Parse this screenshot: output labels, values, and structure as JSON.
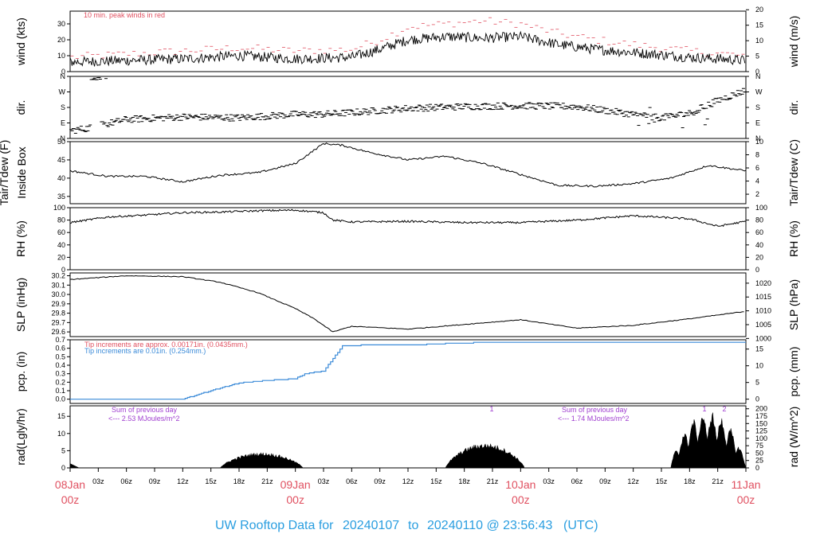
{
  "footer": {
    "prefix": "UW Rooftop Data for",
    "start": "20240107",
    "to": "to",
    "end": "20240110 @ 23:56:43",
    "tz": "(UTC)"
  },
  "x_axis": {
    "hour_ticks": [
      "03z",
      "06z",
      "09z",
      "12z",
      "15z",
      "18z",
      "21z",
      "03z",
      "06z",
      "09z",
      "12z",
      "15z",
      "18z",
      "21z",
      "03z",
      "06z",
      "09z",
      "12z",
      "15z",
      "18z",
      "21z"
    ],
    "day_ticks": [
      {
        "date": "08Jan",
        "hour": "00z"
      },
      {
        "date": "09Jan",
        "hour": "00z"
      },
      {
        "date": "10Jan",
        "hour": "00z"
      },
      {
        "date": "11Jan",
        "hour": "00z"
      }
    ],
    "range_hours": [
      0,
      72
    ]
  },
  "colors": {
    "day_labels": "#e05060",
    "footer": "#2a9ee0",
    "peak_wind": "#e05060",
    "precip_blue": "#3a8ad8",
    "precip_red": "#e05060",
    "radiation_note": "#a040d0"
  },
  "chart_data": [
    {
      "type": "line",
      "panel": "wind",
      "ylabel_left": "wind (kts)",
      "ylabel_right": "wind (m/s)",
      "ylim": [
        0,
        38
      ],
      "yticks_left": [
        "0",
        "10",
        "20",
        "30"
      ],
      "yticks_right": [
        "0",
        "5",
        "10",
        "15",
        "20"
      ],
      "annotation": "10 min. peak winds in red",
      "x": [
        0,
        6,
        12,
        18,
        24,
        30,
        33,
        36,
        40,
        44,
        48,
        52,
        56,
        60,
        66,
        72
      ],
      "series": [
        {
          "values": [
            6,
            7,
            8,
            10,
            8,
            9,
            14,
            20,
            22,
            21,
            22,
            17,
            14,
            12,
            9,
            7
          ]
        }
      ],
      "peak_values": [
        9,
        11,
        13,
        15,
        13,
        14,
        20,
        28,
        30,
        32,
        30,
        24,
        20,
        17,
        13,
        10
      ]
    },
    {
      "type": "scatter",
      "panel": "direction",
      "ylabel_left": "dir.",
      "ylabel_right": "dir.",
      "yticks_left": [
        "N",
        "E",
        "S",
        "W",
        "N"
      ],
      "yticks_right": [
        "N",
        "E",
        "S",
        "W",
        "N"
      ],
      "x": [
        0,
        2,
        6,
        12,
        18,
        24,
        27,
        30,
        36,
        42,
        48,
        54,
        60,
        63,
        66,
        69,
        72
      ],
      "values": [
        45,
        60,
        110,
        125,
        120,
        140,
        140,
        150,
        175,
        185,
        190,
        185,
        140,
        120,
        145,
        220,
        280
      ]
    },
    {
      "type": "line",
      "panel": "temperature",
      "ylabel_left": "Tair/Tdew (F) Inside Box",
      "ylabel_right": "Tair/Tdew (C)",
      "ylim_left": [
        33,
        50
      ],
      "yticks_left": [
        "35",
        "40",
        "45",
        "50"
      ],
      "yticks_right": [
        "2",
        "4",
        "6",
        "8",
        "10"
      ],
      "x": [
        0,
        4,
        8,
        12,
        16,
        20,
        24,
        27,
        29,
        32,
        36,
        40,
        44,
        48,
        52,
        56,
        60,
        64,
        68,
        72
      ],
      "values": [
        42,
        40.5,
        40.5,
        39,
        40.8,
        41.5,
        44,
        49.5,
        49,
        47,
        45,
        46,
        44,
        41,
        38,
        37.8,
        38.5,
        40,
        43.5,
        42
      ]
    },
    {
      "type": "line",
      "panel": "rh",
      "ylabel_left": "RH (%)",
      "ylabel_right": "RH (%)",
      "ylim": [
        0,
        100
      ],
      "yticks": [
        "0",
        "20",
        "40",
        "60",
        "80",
        "100"
      ],
      "x": [
        0,
        4,
        8,
        12,
        16,
        20,
        24,
        27,
        28,
        30,
        36,
        42,
        48,
        54,
        60,
        66,
        69,
        72
      ],
      "values": [
        76,
        85,
        88,
        92,
        93,
        95,
        96,
        92,
        80,
        77,
        78,
        76,
        76,
        80,
        87,
        82,
        70,
        78
      ]
    },
    {
      "type": "line",
      "panel": "pressure",
      "ylabel_left": "SLP (inHg)",
      "ylabel_right": "SLP (hPa)",
      "ylim_left": [
        29.55,
        30.23
      ],
      "yticks_left": [
        "29.6",
        "29.7",
        "29.8",
        "29.9",
        "30.0",
        "30.1",
        "30.2"
      ],
      "yticks_right": [
        "1000",
        "1005",
        "1010",
        "1015",
        "1020"
      ],
      "x": [
        0,
        6,
        12,
        16,
        20,
        24,
        26,
        28,
        30,
        36,
        42,
        48,
        50,
        54,
        60,
        66,
        72
      ],
      "values": [
        30.16,
        30.2,
        30.19,
        30.13,
        30.02,
        29.85,
        29.74,
        29.6,
        29.66,
        29.63,
        29.68,
        29.73,
        29.7,
        29.64,
        29.67,
        29.74,
        29.82
      ]
    },
    {
      "type": "line",
      "panel": "precipitation",
      "ylabel_left": "pcp. (in)",
      "ylabel_right": "pcp. (mm)",
      "ylim": [
        -0.05,
        0.7
      ],
      "yticks_left": [
        "0.0",
        "0.1",
        "0.2",
        "0.3",
        "0.4",
        "0.5",
        "0.6",
        "0.7"
      ],
      "yticks_right": [
        "0",
        "5",
        "10",
        "15"
      ],
      "annotation_red": "Tip increments are approx. 0.00171in. (0.0435mm.)",
      "annotation_blue": "Tip increments are 0.01in. (0.254mm.)",
      "x": [
        0,
        12,
        15,
        18,
        21,
        24,
        25,
        27,
        29,
        33,
        37,
        41,
        45,
        48,
        72
      ],
      "values": [
        0,
        0,
        0.1,
        0.19,
        0.22,
        0.24,
        0.3,
        0.33,
        0.63,
        0.64,
        0.64,
        0.66,
        0.67,
        0.67,
        0.67
      ]
    },
    {
      "type": "area",
      "panel": "radiation",
      "ylabel_left": "rad(Lgly/hr)",
      "ylabel_right": "rad (W/m^2)",
      "yticks_left": [
        "0",
        "5",
        "10",
        "15"
      ],
      "yticks_right": [
        "0",
        "25",
        "50",
        "75",
        "100",
        "125",
        "150",
        "175",
        "200"
      ],
      "ylim_right": [
        0,
        210
      ],
      "note_left_line1": "Sum of previous day",
      "note_left_line2": "<--- 2.53 MJoules/m^2",
      "note_right_line1": "Sum of previous day",
      "note_right_line2": "<--- 1.74 MJoules/m^2",
      "markers": [
        "1",
        "1",
        "2"
      ],
      "days": [
        {
          "start": 16,
          "end": 24.8,
          "peak": 50
        },
        {
          "start": 40,
          "end": 48.4,
          "peak": 80
        },
        {
          "start": 64,
          "end": 72,
          "peak": 195
        }
      ]
    }
  ]
}
